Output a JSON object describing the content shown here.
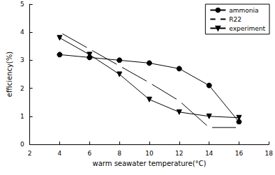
{
  "chart_data": {
    "type": "line",
    "x_label": "warm seawater temperature(°C)",
    "y_label": "efficiency(%)",
    "xlim": [
      2,
      18
    ],
    "xticks": [
      2,
      4,
      6,
      8,
      10,
      12,
      14,
      16,
      18
    ],
    "ylim": [
      0,
      5
    ],
    "yticks": [
      0,
      1,
      2,
      3,
      4,
      5
    ],
    "grid": false,
    "legend": "upper right",
    "series": [
      {
        "name": "ammonia",
        "color": "#000000",
        "marker": "circle",
        "line_style": "solid",
        "x": [
          4,
          6,
          8,
          10,
          12,
          14,
          16
        ],
        "values": [
          3.2,
          3.1,
          3.0,
          2.9,
          2.7,
          2.1,
          0.8
        ]
      },
      {
        "name": "R22",
        "color": "#000000",
        "marker": "open_circle",
        "line_style": "solid",
        "x": [
          4,
          6,
          8,
          10,
          12,
          14,
          16
        ],
        "values": [
          4.0,
          3.4,
          2.8,
          2.2,
          1.55,
          0.6,
          0.6
        ]
      },
      {
        "name": "experiment",
        "color": "#000000",
        "marker": "triangle_down",
        "line_style": "solid",
        "x": [
          4,
          6,
          8,
          10,
          12,
          14,
          16
        ],
        "values": [
          3.8,
          3.2,
          2.5,
          1.6,
          1.15,
          1.0,
          0.95
        ]
      }
    ]
  }
}
